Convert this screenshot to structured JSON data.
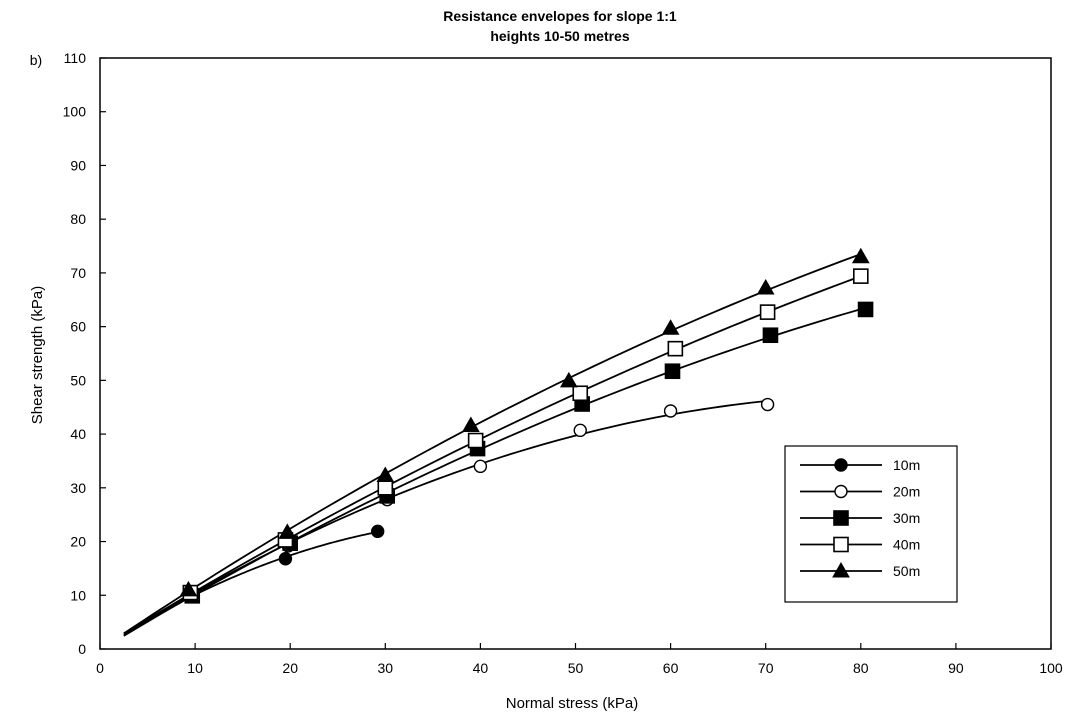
{
  "chart_data": {
    "type": "line",
    "panel_label": "b)",
    "title": "Resistance envelopes for slope 1:1",
    "subtitle": "heights 10-50 metres",
    "xlabel": "Normal stress (kPa)",
    "ylabel": "Shear strength (kPa)",
    "xlim": [
      0,
      100
    ],
    "ylim": [
      0,
      110
    ],
    "xticks": [
      0,
      10,
      20,
      30,
      40,
      50,
      60,
      70,
      80,
      90,
      100
    ],
    "yticks": [
      0,
      10,
      20,
      30,
      40,
      50,
      60,
      70,
      80,
      90,
      100,
      110
    ],
    "grid": false,
    "legend_position": "bottom-right",
    "series": [
      {
        "name": "10m",
        "marker": "filled-circle",
        "x": [
          9.5,
          19.5,
          29.2
        ],
        "y": [
          10,
          16.8,
          21.9
        ]
      },
      {
        "name": "20m",
        "marker": "open-circle",
        "x": [
          9.5,
          19.8,
          30.2,
          40.0,
          50.5,
          60.0,
          70.2
        ],
        "y": [
          10,
          19.2,
          27.8,
          34.0,
          40.7,
          44.3,
          45.5
        ]
      },
      {
        "name": "30m",
        "marker": "filled-square",
        "x": [
          9.7,
          20.0,
          30.2,
          39.7,
          50.7,
          60.2,
          70.5,
          80.5
        ],
        "y": [
          9.9,
          19.7,
          28.5,
          37.3,
          45.6,
          51.7,
          58.4,
          63.2
        ]
      },
      {
        "name": "40m",
        "marker": "open-square",
        "x": [
          9.5,
          19.5,
          30.0,
          39.5,
          50.5,
          60.5,
          70.2,
          80.0
        ],
        "y": [
          10.5,
          20.3,
          30.0,
          38.8,
          47.6,
          55.9,
          62.7,
          69.4
        ]
      },
      {
        "name": "50m",
        "marker": "filled-triangle",
        "x": [
          9.3,
          19.7,
          30.0,
          39.0,
          49.3,
          60.0,
          70.0,
          80.0
        ],
        "y": [
          11.0,
          21.7,
          32.3,
          41.6,
          49.9,
          59.7,
          67.2,
          73.0
        ]
      }
    ]
  }
}
